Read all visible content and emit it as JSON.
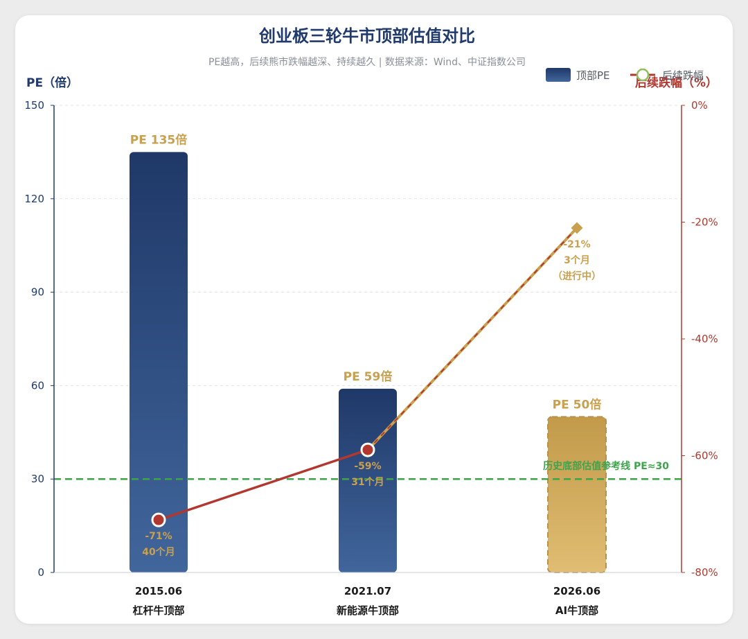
{
  "chart_data": {
    "type": "bar",
    "title": "创业板三轮牛市顶部估值对比",
    "subtitle": "PE越高，后续熊市跌幅越深、持续越久 | 数据来源：Wind、中证指数公司",
    "y_left": {
      "label": "PE（倍）",
      "range": [
        0,
        150
      ],
      "ticks": [
        "0",
        "30",
        "60",
        "90",
        "120",
        "150"
      ]
    },
    "y_right": {
      "label": "后续跌幅（%）",
      "range": [
        -80,
        0
      ],
      "ticks": [
        "0%",
        "-20%",
        "-40%",
        "-60%",
        "-80%"
      ]
    },
    "categories": [
      {
        "date": "2015.06",
        "name": "杠杆牛顶部"
      },
      {
        "date": "2021.07",
        "name": "新能源牛顶部"
      },
      {
        "date": "2026.06",
        "name": "AI牛顶部"
      }
    ],
    "series": [
      {
        "name": "顶部PE",
        "type": "bar",
        "values": [
          135,
          59,
          50
        ],
        "labels": [
          "PE 135倍",
          "PE 59倍",
          "PE 50倍"
        ]
      },
      {
        "name": "后续跌幅",
        "type": "line",
        "values": [
          -71,
          -59,
          -21
        ],
        "labels": [
          [
            "-71%",
            "40个月"
          ],
          [
            "-59%",
            "31个月"
          ],
          [
            "-21%",
            "3个月",
            "（进行中）"
          ]
        ]
      }
    ],
    "reference_line": {
      "value": 30,
      "label": "历史底部估值参考线 PE≈30"
    },
    "colors": {
      "bar_top": "#1f3868",
      "bar_bottom": "#41669c",
      "bar_projected_top": "#c29a4a",
      "bar_projected_bottom": "#e0bd73",
      "line": "#b2382f",
      "line_projected": "#c9a04e",
      "reference": "#3fa34d",
      "left_axis": "#1f3a6b",
      "right_axis": "#b2382f"
    },
    "legend": {
      "position": "top-right",
      "bar": "顶部PE",
      "line": "后续跌幅"
    }
  }
}
